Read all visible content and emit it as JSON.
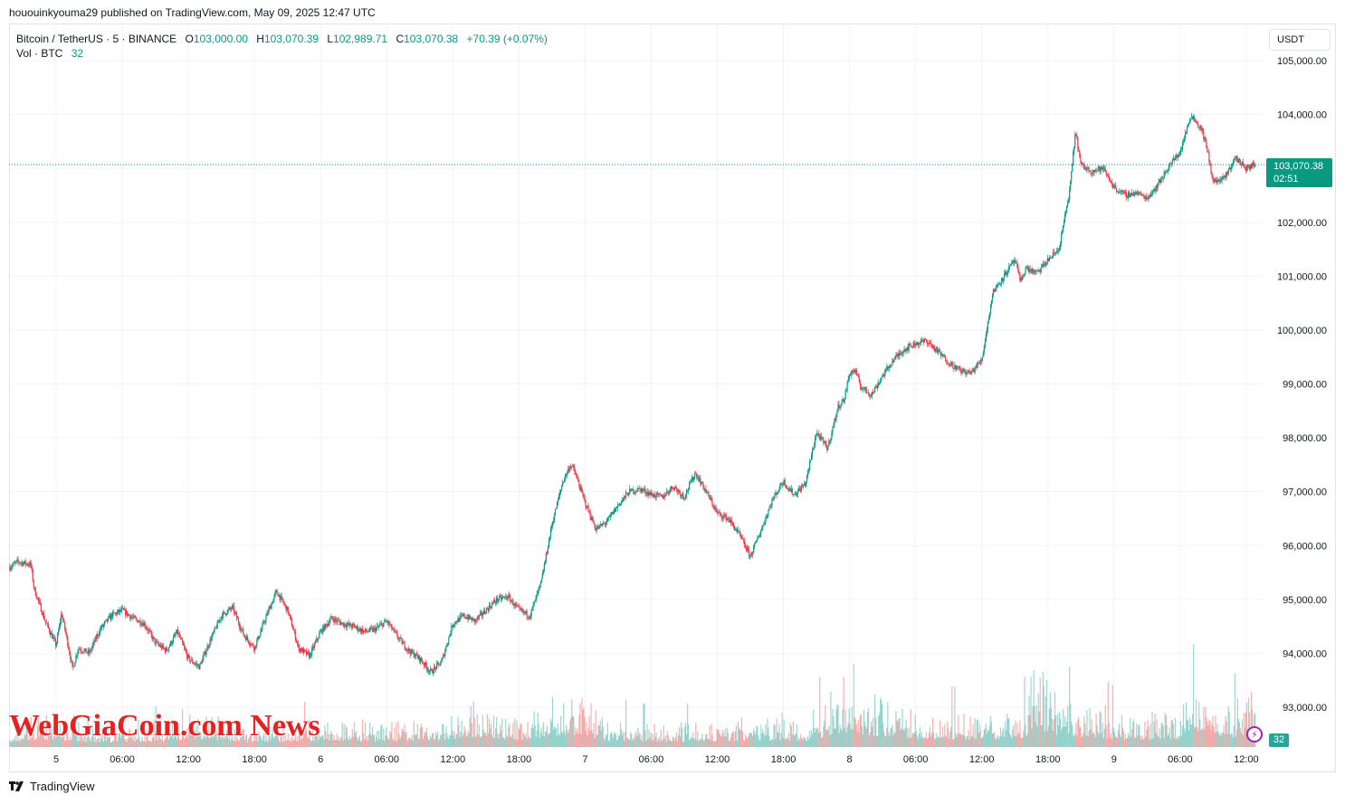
{
  "publisher": "hououinkyouma29 published on TradingView.com, May 09, 2025 12:47 UTC",
  "legend": {
    "symbol": "Bitcoin / TetherUS · 5 · BINANCE",
    "open_label": "O",
    "open": "103,000.00",
    "high_label": "H",
    "high": "103,070.39",
    "low_label": "L",
    "low": "102,989.71",
    "close_label": "C",
    "close": "103,070.38",
    "change": "+70.39 (+0.07%)",
    "vol_label": "Vol · BTC",
    "vol": "32"
  },
  "currency_button": "USDT",
  "last_price": {
    "price": "103,070.38",
    "countdown": "02:51"
  },
  "volume_tag": "32",
  "watermark": "WebGiaCoin.com News",
  "branding": "TradingView",
  "colors": {
    "up": "#089981",
    "down": "#f23645",
    "vol_up": "#26a69a",
    "vol_down": "#ef5350",
    "grid": "#f0f3fa"
  },
  "chart_data": {
    "type": "line",
    "title": "Bitcoin / TetherUS · 5 · BINANCE",
    "ylabel": "USDT",
    "ylim": [
      92500,
      105500
    ],
    "y_ticks": [
      "105,000.00",
      "104,000.00",
      "103,000.00",
      "102,000.00",
      "101,000.00",
      "100,000.00",
      "99,000.00",
      "98,000.00",
      "97,000.00",
      "96,000.00",
      "95,000.00",
      "94,000.00",
      "93,000.00"
    ],
    "y_tick_values": [
      105000,
      104000,
      103000,
      102000,
      101000,
      100000,
      99000,
      98000,
      97000,
      96000,
      95000,
      94000,
      93000
    ],
    "x_ticks": [
      "5",
      "06:00",
      "12:00",
      "18:00",
      "6",
      "06:00",
      "12:00",
      "18:00",
      "7",
      "06:00",
      "12:00",
      "18:00",
      "8",
      "06:00",
      "12:00",
      "18:00",
      "9",
      "06:00",
      "12:00"
    ],
    "x_tick_hours": [
      0,
      6,
      12,
      18,
      24,
      30,
      36,
      42,
      48,
      54,
      60,
      66,
      72,
      78,
      84,
      90,
      96,
      102,
      108
    ],
    "x_start_hour": -4.2,
    "x_end_hour": 108.8,
    "series": [
      {
        "name": "BTCUSDT close (approx.)",
        "x": [
          -4.2,
          -3.5,
          -2.3,
          -2.0,
          -1.5,
          -1.0,
          0.0,
          0.5,
          1.0,
          1.5,
          2.0,
          3.0,
          4.0,
          5.0,
          6.0,
          7.0,
          8.0,
          9.0,
          10.0,
          11.0,
          12.0,
          13.0,
          14.0,
          15.0,
          16.0,
          17.0,
          18.0,
          19.0,
          20.0,
          21.0,
          22.0,
          23.0,
          24.0,
          25.0,
          26.0,
          27.0,
          28.0,
          29.0,
          30.0,
          31.0,
          32.0,
          33.0,
          34.0,
          35.0,
          36.0,
          37.0,
          38.0,
          39.0,
          40.0,
          41.0,
          42.0,
          43.0,
          44.0,
          45.0,
          46.0,
          46.7,
          47.0,
          47.5,
          48.0,
          49.0,
          50.0,
          51.0,
          52.0,
          53.0,
          54.0,
          55.0,
          56.0,
          57.0,
          58.0,
          59.0,
          60.0,
          61.0,
          62.0,
          63.0,
          64.0,
          65.0,
          66.0,
          66.5,
          67.0,
          68.0,
          69.0,
          70.0,
          71.0,
          71.5,
          72.0,
          72.5,
          73.0,
          74.0,
          75.0,
          76.0,
          77.0,
          78.0,
          79.0,
          80.0,
          81.0,
          82.0,
          83.0,
          84.0,
          85.0,
          86.0,
          87.0,
          87.5,
          88.0,
          89.0,
          90.0,
          91.0,
          92.0,
          92.5,
          93.0,
          94.0,
          95.0,
          96.0,
          97.0,
          98.0,
          99.0,
          100.0,
          101.0,
          102.0,
          103.0,
          104.0,
          104.5,
          105.0,
          106.0,
          107.0,
          108.0,
          108.8
        ],
        "values": [
          95600,
          95700,
          95650,
          95200,
          94900,
          94600,
          94150,
          94750,
          94250,
          93700,
          94100,
          94000,
          94450,
          94700,
          94800,
          94650,
          94550,
          94200,
          94050,
          94400,
          93900,
          93750,
          94250,
          94700,
          94850,
          94350,
          94100,
          94650,
          95150,
          94800,
          94100,
          93950,
          94400,
          94650,
          94550,
          94500,
          94400,
          94450,
          94600,
          94300,
          94050,
          93900,
          93650,
          93850,
          94550,
          94700,
          94600,
          94800,
          95000,
          95050,
          94800,
          94700,
          95300,
          96400,
          97200,
          97500,
          97400,
          97100,
          96800,
          96300,
          96450,
          96750,
          97000,
          97050,
          96950,
          96900,
          97100,
          96900,
          97350,
          97000,
          96600,
          96500,
          96200,
          95800,
          96300,
          96850,
          97200,
          97050,
          96950,
          97150,
          98100,
          97800,
          98600,
          98700,
          99200,
          99250,
          98950,
          98800,
          99150,
          99450,
          99650,
          99750,
          99800,
          99600,
          99400,
          99250,
          99200,
          99450,
          100700,
          101000,
          101300,
          100900,
          101150,
          101050,
          101300,
          101500,
          102600,
          103700,
          103050,
          102950,
          103000,
          102650,
          102500,
          102550,
          102450,
          102700,
          103050,
          103300,
          104000,
          103700,
          103300,
          102750,
          102800,
          103200,
          103000,
          103070
        ]
      }
    ],
    "volume_series": {
      "name": "Vol · BTC",
      "x": [
        -4.2,
        -2,
        0,
        4,
        10,
        12,
        18,
        24,
        30,
        36,
        37,
        42,
        46,
        47,
        48,
        50,
        54,
        60,
        66,
        68,
        72,
        72.5,
        73,
        78,
        84,
        88,
        89,
        90,
        92,
        94,
        96,
        100,
        102,
        104,
        104.5,
        105,
        106,
        107,
        108,
        108.8
      ],
      "values": [
        120,
        180,
        160,
        110,
        130,
        210,
        110,
        150,
        120,
        180,
        260,
        150,
        300,
        240,
        270,
        160,
        130,
        140,
        170,
        150,
        360,
        380,
        290,
        200,
        180,
        220,
        520,
        310,
        250,
        240,
        190,
        180,
        200,
        400,
        290,
        300,
        220,
        230,
        330,
        260
      ]
    }
  }
}
